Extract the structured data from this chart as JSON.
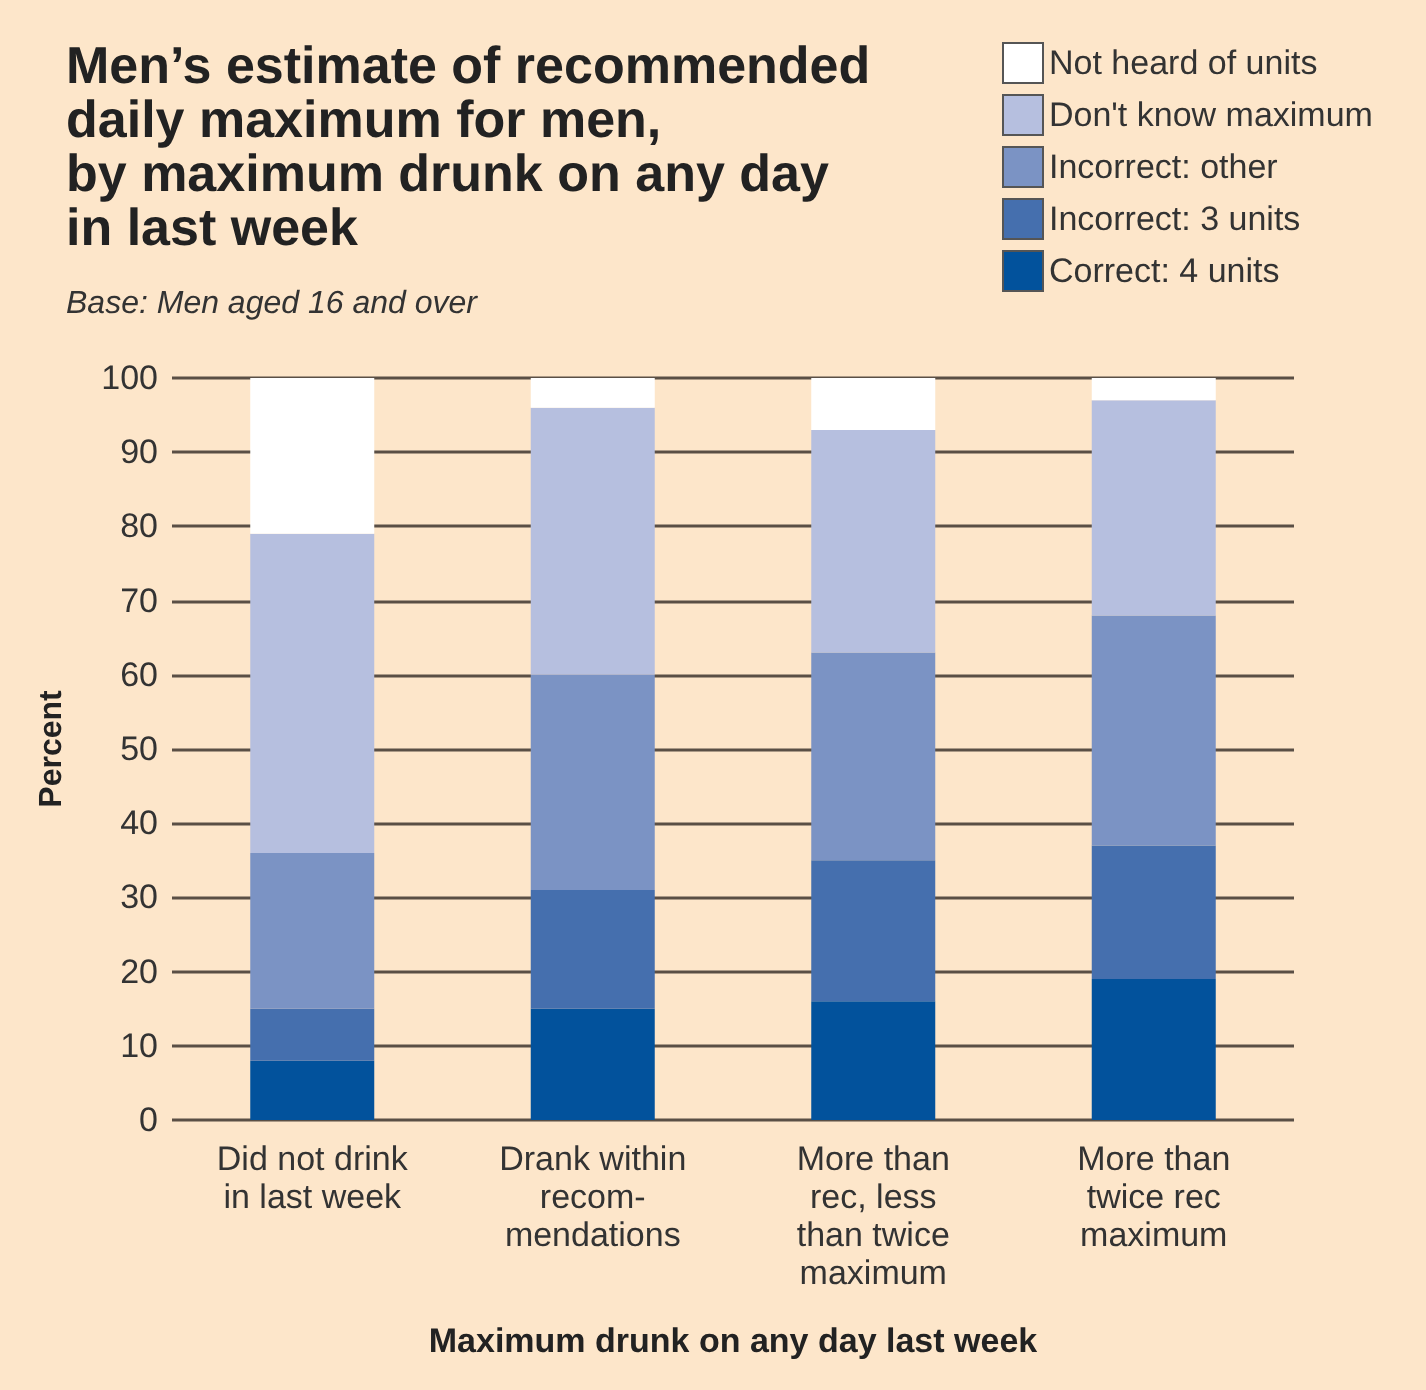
{
  "chart_data": {
    "type": "bar",
    "title": "Men’s estimate of recommended\ndaily maximum for men,\nby maximum drunk on any day\nin last week",
    "subtitle": "Base: Men aged 16 and over",
    "xlabel": "Maximum drunk on any day last week",
    "ylabel": "Percent",
    "categories": [
      "Did not drink\nin last week",
      "Drank within\nrecom-\nmendations",
      "More than\nrec, less\nthan twice\nmaximum",
      "More than\ntwice rec\nmaximum"
    ],
    "stacked": true,
    "series": [
      {
        "name": "Correct: 4 units",
        "color": "#02529c",
        "values": [
          8,
          15,
          16,
          19
        ]
      },
      {
        "name": "Incorrect: 3 units",
        "color": "#456fae",
        "values": [
          7,
          16,
          19,
          18
        ]
      },
      {
        "name": "Incorrect: other",
        "color": "#7b93c4",
        "values": [
          21,
          29,
          28,
          31
        ]
      },
      {
        "name": "Don't know maximum",
        "color": "#b6bfdf",
        "values": [
          43,
          36,
          30,
          29
        ]
      },
      {
        "name": "Not heard of units",
        "color": "#ffffff",
        "values": [
          21,
          4,
          7,
          3
        ]
      }
    ],
    "ylim": [
      0,
      100
    ],
    "yticks": [
      0,
      10,
      20,
      30,
      40,
      50,
      60,
      70,
      80,
      90,
      100
    ],
    "grid": "y",
    "legend": "top right"
  }
}
